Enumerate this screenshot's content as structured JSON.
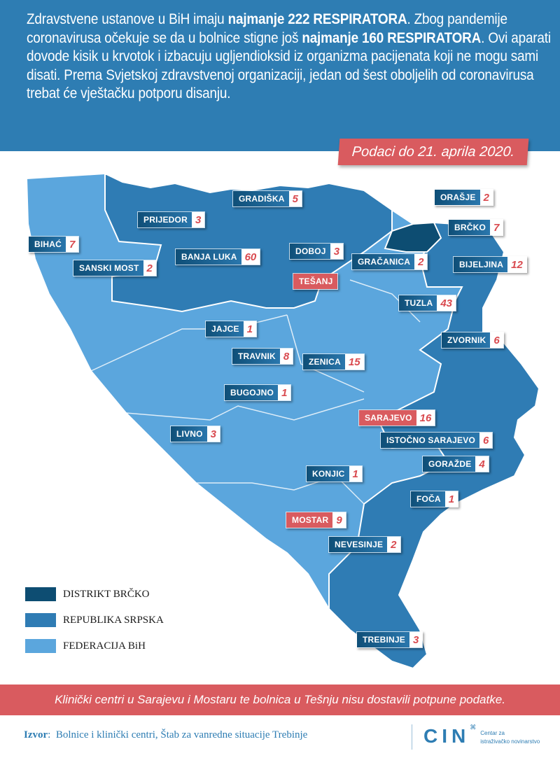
{
  "header": {
    "intro_parts": [
      {
        "text": "Zdravstvene ustanove u BiH imaju ",
        "bold": false
      },
      {
        "text": "najmanje 222 RESPIRATORA",
        "bold": true
      },
      {
        "text": ". Zbog pandemije coronavirusa očekuje se da u bolnice stigne još ",
        "bold": false
      },
      {
        "text": "najmanje 160 RESPIRATORA",
        "bold": true
      },
      {
        "text": ". Ovi aparati dovode kisik u krvotok i izbacuju ugljendioksid iz organizma pacijenata koji ne mogu sami disati. Prema Svjetskoj zdravstvenoj organizaciji, jedan od šest oboljelih od coronavirusa trebat će vještačku potporu disanju.",
        "bold": false
      }
    ],
    "date_badge": "Podaci do 21. aprila 2020."
  },
  "colors": {
    "header_bg": "#2e7db3",
    "distrikt_brcko": "#0d4d72",
    "republika_srpska": "#2f7cb4",
    "federacija_bih": "#5ba6dd",
    "highlight_red": "#d95b5f"
  },
  "locations": [
    {
      "name": "GRADIŠKA",
      "value": "5",
      "incomplete": false
    },
    {
      "name": "ORAŠJE",
      "value": "2",
      "incomplete": false
    },
    {
      "name": "PRIJEDOR",
      "value": "3",
      "incomplete": false
    },
    {
      "name": "BRČKO",
      "value": "7",
      "incomplete": false
    },
    {
      "name": "BIHAĆ",
      "value": "7",
      "incomplete": false
    },
    {
      "name": "DOBOJ",
      "value": "3",
      "incomplete": false
    },
    {
      "name": "GRAČANICA",
      "value": "2",
      "incomplete": false
    },
    {
      "name": "SANSKI MOST",
      "value": "2",
      "incomplete": false
    },
    {
      "name": "BANJA LUKA",
      "value": "60",
      "incomplete": false
    },
    {
      "name": "BIJELJINA",
      "value": "12",
      "incomplete": false
    },
    {
      "name": "TEŠANJ",
      "value": null,
      "incomplete": true
    },
    {
      "name": "TUZLA",
      "value": "43",
      "incomplete": false
    },
    {
      "name": "JAJCE",
      "value": "1",
      "incomplete": false
    },
    {
      "name": "ZVORNIK",
      "value": "6",
      "incomplete": false
    },
    {
      "name": "TRAVNIK",
      "value": "8",
      "incomplete": false
    },
    {
      "name": "ZENICA",
      "value": "15",
      "incomplete": false
    },
    {
      "name": "BUGOJNO",
      "value": "1",
      "incomplete": false
    },
    {
      "name": "SARAJEVO",
      "value": "16",
      "incomplete": true
    },
    {
      "name": "LIVNO",
      "value": "3",
      "incomplete": false
    },
    {
      "name": "ISTOČNO SARAJEVO",
      "value": "6",
      "incomplete": false
    },
    {
      "name": "GORAŽDE",
      "value": "4",
      "incomplete": false
    },
    {
      "name": "KONJIC",
      "value": "1",
      "incomplete": false
    },
    {
      "name": "FOČA",
      "value": "1",
      "incomplete": false
    },
    {
      "name": "MOSTAR",
      "value": "9",
      "incomplete": true
    },
    {
      "name": "NEVESINJE",
      "value": "2",
      "incomplete": false
    },
    {
      "name": "TREBINJE",
      "value": "3",
      "incomplete": false
    }
  ],
  "legend": [
    {
      "label": "DISTRIKT BRČKO",
      "color": "#0d4d72"
    },
    {
      "label": "REPUBLIKA SRPSKA",
      "color": "#2f7cb4"
    },
    {
      "label": "FEDERACIJA BiH",
      "color": "#5ba6dd"
    }
  ],
  "footer": {
    "note": "Klinički centri u Sarajevu i Mostaru te bolnica u Tešnju nisu dostavili potpune podatke.",
    "source_label": "Izvor",
    "source_text": "Bolnice i klinički centri, Štab za vanredne situacije Trebinje",
    "logo_text": "CIN",
    "logo_subtitle_1": "Centar za",
    "logo_subtitle_2": "istraživačko novinarstvo"
  }
}
